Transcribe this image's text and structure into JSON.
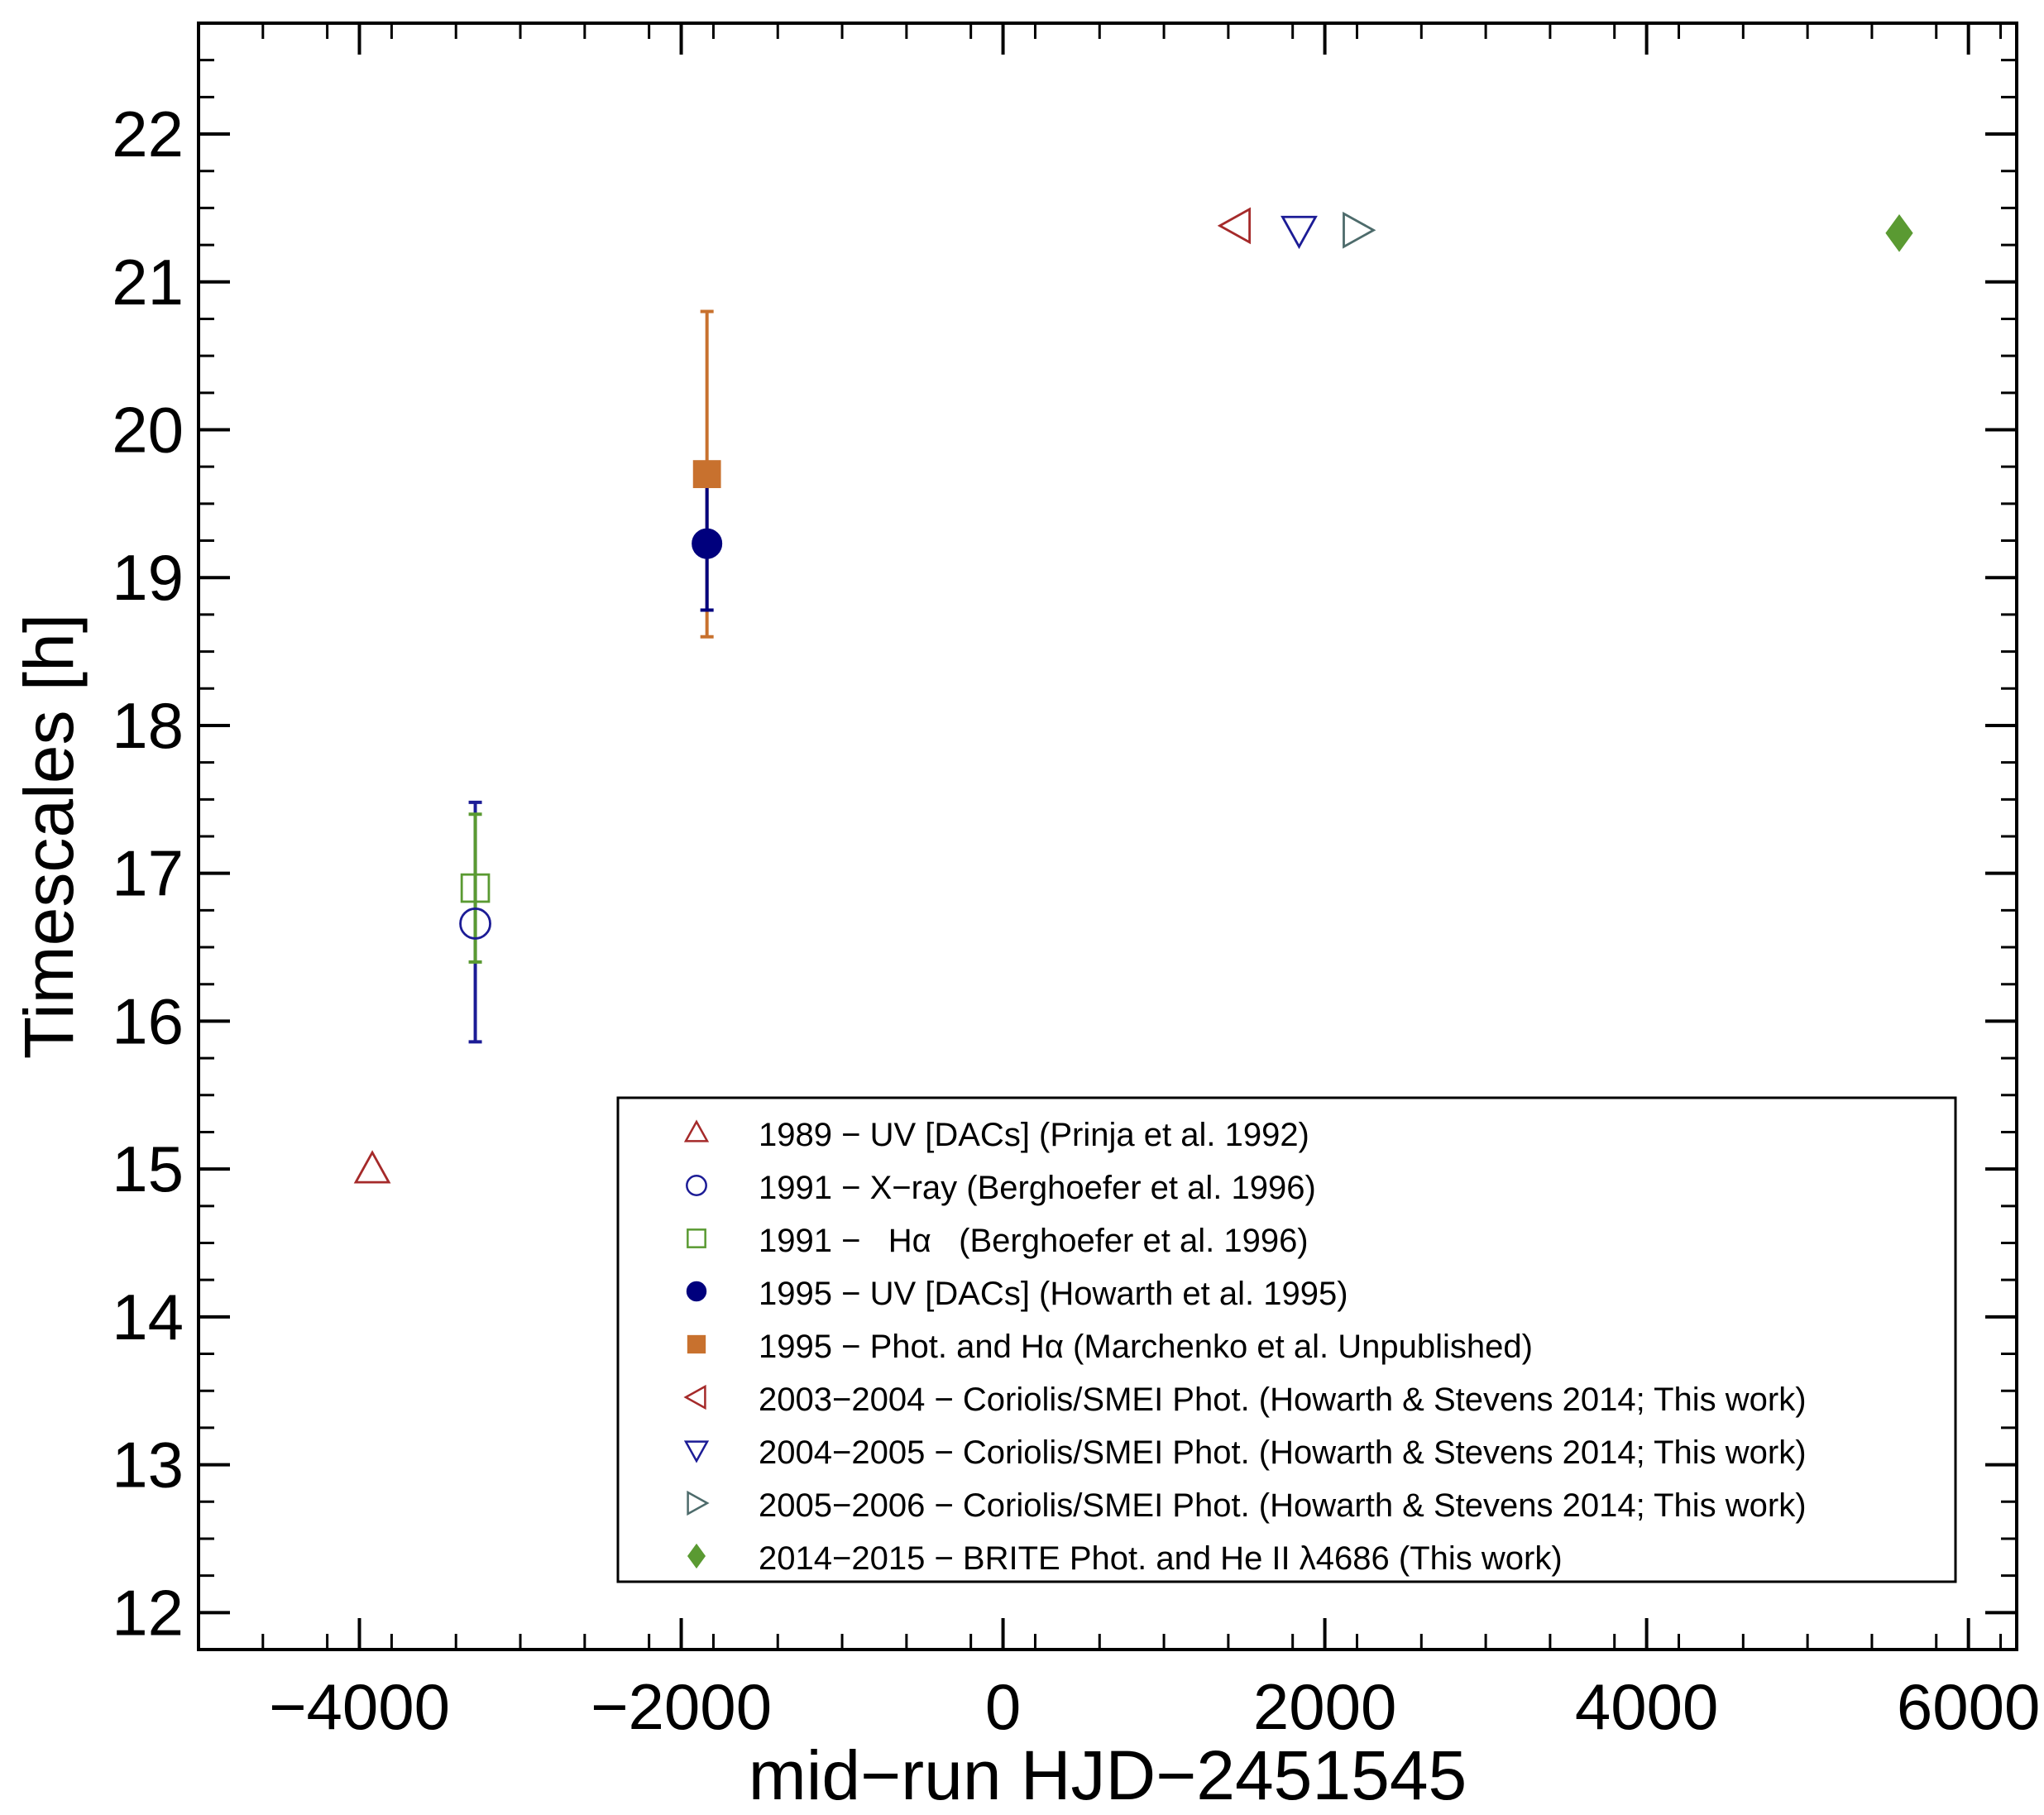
{
  "chart_data": {
    "type": "scatter",
    "title": "",
    "xlabel": "mid−run HJD−2451545",
    "ylabel": "Timescales [h]",
    "xlim": [
      -5000,
      6300
    ],
    "ylim": [
      11.75,
      22.75
    ],
    "x_ticks": [
      -4000,
      -2000,
      0,
      2000,
      4000,
      6000
    ],
    "x_tick_labels": [
      "−4000",
      "−2000",
      "0",
      "2000",
      "4000",
      "6000"
    ],
    "y_ticks": [
      12,
      13,
      14,
      15,
      16,
      17,
      18,
      19,
      20,
      21,
      22
    ],
    "y_tick_labels": [
      "12",
      "13",
      "14",
      "15",
      "16",
      "17",
      "18",
      "19",
      "20",
      "21",
      "22"
    ],
    "grid": false,
    "legend_position": "bottom-right",
    "series": [
      {
        "name": "1989 − UV [DACs] (Prinja et al. 1992)",
        "marker": "triangle-up-open",
        "color": "#a52a2a",
        "points": [
          {
            "x": -3920,
            "y": 15.0
          }
        ]
      },
      {
        "name": "1991 − X−ray (Berghoefer et al. 1996)",
        "marker": "circle-open",
        "color": "#1c1c96",
        "points": [
          {
            "x": -3280,
            "y": 16.66,
            "yerr_low": 0.8,
            "yerr_high": 0.82
          }
        ]
      },
      {
        "name": "1991 −   Hα   (Berghoefer et al. 1996)",
        "marker": "square-open",
        "color": "#5a9a32",
        "points": [
          {
            "x": -3280,
            "y": 16.9,
            "yerr_low": 0.5,
            "yerr_high": 0.5
          }
        ]
      },
      {
        "name": "1995 − UV [DACs] (Howarth et al. 1995)",
        "marker": "circle-filled",
        "color": "#00007d",
        "points": [
          {
            "x": -1840,
            "y": 19.23,
            "yerr_low": 0.45,
            "yerr_high": 0.45
          }
        ]
      },
      {
        "name": "1995 − Phot. and Hα (Marchenko et al. Unpublished)",
        "marker": "square-filled",
        "color": "#c8712e",
        "points": [
          {
            "x": -1840,
            "y": 19.7,
            "yerr_low": 1.1,
            "yerr_high": 1.1
          }
        ]
      },
      {
        "name": "2003−2004 − Coriolis/SMEI Phot. (Howarth & Stevens 2014; This work)",
        "marker": "triangle-left-open",
        "color": "#a52a2a",
        "points": [
          {
            "x": 1450,
            "y": 21.38
          }
        ]
      },
      {
        "name": "2004−2005 − Coriolis/SMEI Phot. (Howarth & Stevens 2014; This work)",
        "marker": "triangle-down-open",
        "color": "#1c1c96",
        "points": [
          {
            "x": 1840,
            "y": 21.35
          }
        ]
      },
      {
        "name": "2005−2006 − Coriolis/SMEI Phot. (Howarth & Stevens 2014; This work)",
        "marker": "triangle-right-open",
        "color": "#4d6b6b",
        "points": [
          {
            "x": 2200,
            "y": 21.35
          }
        ]
      },
      {
        "name": "2014−2015 − BRITE Phot. and He II λ4686 (This work)",
        "marker": "diamond-filled",
        "color": "#5a9a32",
        "points": [
          {
            "x": 5570,
            "y": 21.33
          }
        ]
      }
    ]
  }
}
